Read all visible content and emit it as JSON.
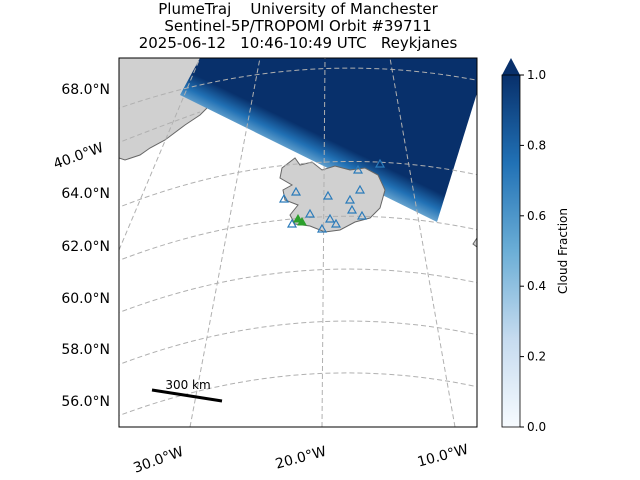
{
  "title": [
    "PlumeTraj    University of Manchester",
    "Sentinel-5P/TROPOMI Orbit #39711",
    "2025-06-12   10:46-10:49 UTC   Reykjanes"
  ],
  "lat_labels": [
    "68.0°N",
    "64.0°N",
    "62.0°N",
    "60.0°N",
    "58.0°N",
    "56.0°N"
  ],
  "lon_labels": [
    "40.0°W",
    "30.0°W",
    "20.0°W",
    "10.0°W"
  ],
  "scale_bar": "300 km",
  "colorbar": {
    "label": "Cloud Fraction",
    "lim": [
      0,
      1
    ],
    "ticks": [
      {
        "value": 0,
        "label": "0.0"
      },
      {
        "value": 0.2,
        "label": "0.2"
      },
      {
        "value": 0.4,
        "label": "0.4"
      },
      {
        "value": 0.6,
        "label": "0.6"
      },
      {
        "value": 0.8,
        "label": "0.8"
      },
      {
        "value": 1,
        "label": "1.0"
      }
    ]
  }
}
